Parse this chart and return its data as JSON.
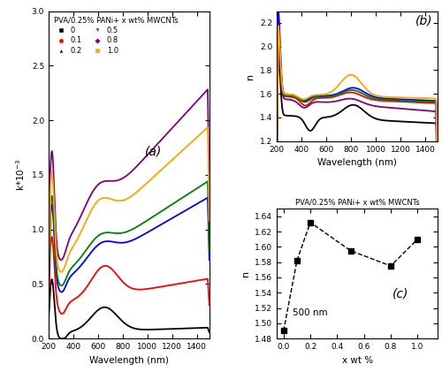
{
  "title_a": "(a)",
  "title_b": "(b)",
  "title_c": "(c)",
  "legend_title": "PVA/0.25% PANi+ x wt% MWCNTs",
  "legend_labels": [
    "0",
    "0.1",
    "0.2",
    "0.5",
    "0.8",
    "1.0"
  ],
  "colors": [
    "black",
    "red",
    "blue",
    "green",
    "purple",
    "orange"
  ],
  "wavelength_min": 200,
  "wavelength_max": 1500,
  "xlabel": "Wavelength (nm)",
  "ylabel_a": "k*10⁻³",
  "ylabel_b": "n",
  "ylabel_c": "n",
  "xlabel_c": "x wt %",
  "title_c_subtitle": "PVA/0.25% PANi+ x wt% MWCNTs",
  "annotation_c": "500 nm",
  "xc_values": [
    0.0,
    0.1,
    0.2,
    0.5,
    0.8,
    1.0
  ],
  "yc_values": [
    1.49,
    1.582,
    1.632,
    1.595,
    1.575,
    1.61
  ],
  "ylim_a": [
    0.0,
    3.0
  ],
  "ylim_b": [
    1.2,
    2.3
  ],
  "ylim_c": [
    1.48,
    1.65
  ]
}
